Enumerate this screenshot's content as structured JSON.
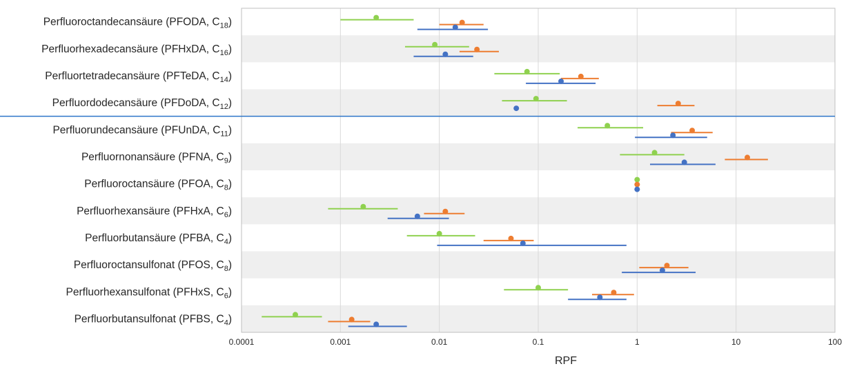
{
  "chart_data": {
    "type": "scatter",
    "subtype": "forest-plot-horizontal",
    "title": "",
    "xlabel": "RPF",
    "ylabel": "",
    "x_scale": "log",
    "xlim": [
      0.0001,
      100
    ],
    "x_ticks": [
      {
        "value": 0.0001,
        "label": "0.0001"
      },
      {
        "value": 0.001,
        "label": "0.001"
      },
      {
        "value": 0.01,
        "label": "0.01"
      },
      {
        "value": 0.1,
        "label": "0.1"
      },
      {
        "value": 1,
        "label": "1"
      },
      {
        "value": 10,
        "label": "10"
      },
      {
        "value": 100,
        "label": "100"
      }
    ],
    "grid": "vertical",
    "legend": "none",
    "reference_line": {
      "orientation": "horizontal",
      "after_category": "Perfluordodecansäure (PFDoDA, C12)",
      "color": "#2e75c9"
    },
    "categories": [
      {
        "main": "Perfluoroctandecansäure (PFODA, C",
        "sub": "18",
        "tail": ")"
      },
      {
        "main": "Perfluorhexadecansäure (PFHxDA, C",
        "sub": "16",
        "tail": ")"
      },
      {
        "main": "Perfluortetradecansäure (PFTeDA, C",
        "sub": "14",
        "tail": ")"
      },
      {
        "main": "Perfluordodecansäure (PFDoDA, C",
        "sub": "12",
        "tail": ")"
      },
      {
        "main": "Perfluorundecansäure (PFUnDA, C",
        "sub": "11",
        "tail": ")"
      },
      {
        "main": "Perfluornonansäure (PFNA, C",
        "sub": "9",
        "tail": ")"
      },
      {
        "main": "Perfluoroctansäure (PFOA, C",
        "sub": "8",
        "tail": ")"
      },
      {
        "main": "Perfluorhexansäure (PFHxA, C",
        "sub": "6",
        "tail": ")"
      },
      {
        "main": "Perfluorbutansäure (PFBA, C",
        "sub": "4",
        "tail": ")"
      },
      {
        "main": "Perfluoroctansulfonat (PFOS, C",
        "sub": "8",
        "tail": ")"
      },
      {
        "main": "Perfluorhexansulfonat (PFHxS, C",
        "sub": "6",
        "tail": ")"
      },
      {
        "main": "Perfluorbutansulfonat (PFBS, C",
        "sub": "4",
        "tail": ")"
      }
    ],
    "series": [
      {
        "color": "#8fd14f",
        "points": [
          {
            "value": 0.0023,
            "low": 0.001,
            "high": 0.0055
          },
          {
            "value": 0.009,
            "low": 0.0045,
            "high": 0.02
          },
          {
            "value": 0.077,
            "low": 0.036,
            "high": 0.165
          },
          {
            "value": 0.095,
            "low": 0.043,
            "high": 0.195
          },
          {
            "value": 0.5,
            "low": 0.25,
            "high": 1.15
          },
          {
            "value": 1.5,
            "low": 0.67,
            "high": 3.0
          },
          {
            "value": 1,
            "low": null,
            "high": null
          },
          {
            "value": 0.0017,
            "low": 0.00075,
            "high": 0.0038
          },
          {
            "value": 0.01,
            "low": 0.0047,
            "high": 0.023
          },
          null,
          {
            "value": 0.1,
            "low": 0.045,
            "high": 0.2
          },
          {
            "value": 0.00035,
            "low": 0.00016,
            "high": 0.00065
          }
        ]
      },
      {
        "color": "#ed7d31",
        "points": [
          {
            "value": 0.017,
            "low": 0.01,
            "high": 0.028
          },
          {
            "value": 0.024,
            "low": 0.016,
            "high": 0.04
          },
          {
            "value": 0.27,
            "low": 0.17,
            "high": 0.41
          },
          {
            "value": 2.6,
            "low": 1.6,
            "high": 3.8
          },
          {
            "value": 3.6,
            "low": 2.2,
            "high": 5.8
          },
          {
            "value": 13,
            "low": 7.7,
            "high": 21
          },
          {
            "value": 1,
            "low": null,
            "high": null
          },
          {
            "value": 0.0115,
            "low": 0.007,
            "high": 0.018
          },
          {
            "value": 0.053,
            "low": 0.028,
            "high": 0.09
          },
          {
            "value": 2.0,
            "low": 1.05,
            "high": 3.3
          },
          {
            "value": 0.58,
            "low": 0.35,
            "high": 0.93
          },
          {
            "value": 0.0013,
            "low": 0.00075,
            "high": 0.002
          }
        ]
      },
      {
        "color": "#4472c4",
        "points": [
          {
            "value": 0.0145,
            "low": 0.006,
            "high": 0.031
          },
          {
            "value": 0.0115,
            "low": 0.0055,
            "high": 0.022
          },
          {
            "value": 0.17,
            "low": 0.075,
            "high": 0.38
          },
          {
            "value": 0.06,
            "low": null,
            "high": null
          },
          {
            "value": 2.3,
            "low": 0.95,
            "high": 5.1
          },
          {
            "value": 3.0,
            "low": 1.35,
            "high": 6.2
          },
          {
            "value": 1,
            "low": null,
            "high": null
          },
          {
            "value": 0.006,
            "low": 0.003,
            "high": 0.0125
          },
          {
            "value": 0.07,
            "low": 0.0095,
            "high": 0.78
          },
          {
            "value": 1.8,
            "low": 0.7,
            "high": 3.9
          },
          {
            "value": 0.42,
            "low": 0.2,
            "high": 0.78
          },
          {
            "value": 0.0023,
            "low": 0.0012,
            "high": 0.0047
          }
        ]
      }
    ]
  }
}
